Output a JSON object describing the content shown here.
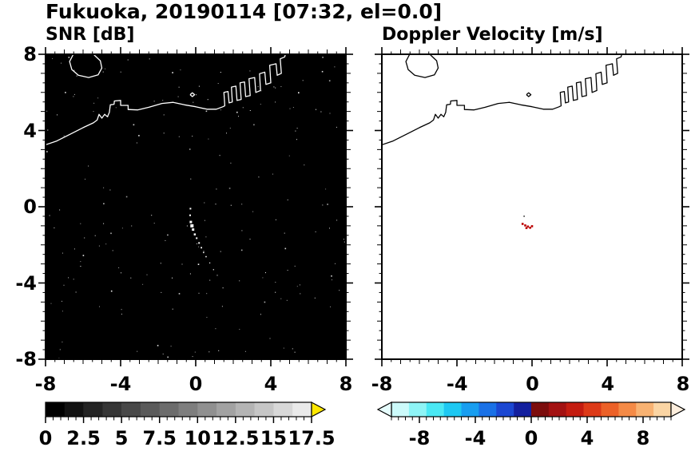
{
  "title": "Fukuoka, 20190114 [07:32, el=0.0]",
  "panels": {
    "snr": {
      "title": "SNR [dB]"
    },
    "vel": {
      "title": "Doppler Velocity [m/s]"
    }
  },
  "axes": {
    "x_tick_labels": [
      "-8",
      "-4",
      "0",
      "4",
      "8"
    ],
    "y_tick_labels": [
      "8",
      "4",
      "0",
      "-4",
      "-8"
    ]
  },
  "colorbars": {
    "snr": {
      "tick_labels": [
        "0",
        "2.5",
        "5",
        "7.5",
        "10",
        "12.5",
        "15",
        "17.5"
      ],
      "tick_values": [
        0,
        2.5,
        5,
        7.5,
        10,
        12.5,
        15,
        17.5
      ],
      "range": [
        0,
        17.5
      ],
      "segment_colors": [
        "#000000",
        "#121212",
        "#242424",
        "#363636",
        "#484848",
        "#5a5a5a",
        "#6c6c6c",
        "#7e7e7e",
        "#909090",
        "#a2a2a2",
        "#b4b4b4",
        "#c6c6c6",
        "#d8d8d8",
        "#eaeaea"
      ],
      "over_arrow_color": "#ffe800"
    },
    "vel": {
      "tick_labels": [
        "-8",
        "-4",
        "0",
        "4",
        "8"
      ],
      "tick_values": [
        -8,
        -4,
        0,
        4,
        8
      ],
      "range": [
        -10,
        10
      ],
      "segment_colors": [
        "#ccfafa",
        "#8ef4f6",
        "#4ae8f4",
        "#1ec8f2",
        "#189ef0",
        "#1a71e6",
        "#1b47d2",
        "#131f9e",
        "#7c0d0d",
        "#a31111",
        "#c41c10",
        "#dd3a18",
        "#ec6128",
        "#f48a46",
        "#f8b272",
        "#fbd5a4"
      ],
      "under_arrow_color": "#e6fdfd",
      "over_arrow_color": "#fdeedd"
    }
  },
  "chart_data": {
    "type": "heatmap",
    "suptitle": "Fukuoka, 20190114 [07:32, el=0.0]",
    "axes": {
      "xlim": [
        -8,
        8
      ],
      "ylim": [
        -8,
        8
      ],
      "xticks": [
        -8,
        -4,
        0,
        4,
        8
      ],
      "yticks": [
        -8,
        -4,
        0,
        4,
        8
      ]
    },
    "panels": [
      {
        "title": "SNR [dB]",
        "background": "#000000",
        "coast_color": "#ffffff",
        "colorbar": {
          "range": [
            0,
            17.5
          ],
          "ticks": [
            0,
            2.5,
            5,
            7.5,
            10,
            12.5,
            15,
            17.5
          ],
          "colormap": "grayscale black to white",
          "over_range_arrow": "yellow"
        },
        "texture": "sparse faint noise speckle over black field",
        "echo_color": "#ffffff",
        "echo_streak": [
          [
            -0.28,
            -0.1,
            2.0
          ],
          [
            -0.3,
            -0.45,
            2.0
          ],
          [
            -0.26,
            -0.8,
            3.0
          ],
          [
            -0.2,
            -1.0,
            4.0
          ],
          [
            -0.14,
            -1.2,
            3.0
          ],
          [
            -0.05,
            -1.45,
            2.5
          ],
          [
            0.05,
            -1.65,
            2.0
          ],
          [
            0.18,
            -1.9,
            2.0
          ],
          [
            0.3,
            -2.15,
            1.8
          ],
          [
            0.42,
            -2.4,
            1.5
          ],
          [
            0.55,
            -2.62,
            1.5
          ],
          [
            0.75,
            -2.95,
            1.2
          ],
          [
            0.95,
            -3.3,
            1.2
          ],
          [
            1.15,
            -3.6,
            1.0
          ]
        ]
      },
      {
        "title": "Doppler Velocity [m/s]",
        "background": "#ffffff",
        "coast_color": "#000000",
        "colorbar": {
          "range": [
            -10,
            10
          ],
          "ticks": [
            -8,
            -4,
            0,
            4,
            8
          ],
          "colormap": "pale cyan to navy (negative), dark red to pale orange (positive)",
          "out_of_range_arrows": "both ends"
        },
        "echo_color": "#bb0000",
        "echo_cells": [
          [
            -0.5,
            -0.9
          ],
          [
            -0.36,
            -0.98
          ],
          [
            -0.22,
            -1.04
          ],
          [
            -0.1,
            -1.1
          ],
          [
            0.0,
            -1.02
          ],
          [
            -0.3,
            -1.12
          ]
        ],
        "dark_points": [
          [
            -0.42,
            -0.5
          ]
        ]
      }
    ],
    "coastline_paths": [
      {
        "name": "mainland-with-harbor",
        "points": [
          [
            -8.0,
            3.25
          ],
          [
            -7.4,
            3.45
          ],
          [
            -6.7,
            3.8
          ],
          [
            -6.0,
            4.15
          ],
          [
            -5.45,
            4.4
          ],
          [
            -5.25,
            4.55
          ],
          [
            -5.15,
            4.85
          ],
          [
            -5.0,
            4.65
          ],
          [
            -4.85,
            4.85
          ],
          [
            -4.7,
            4.72
          ],
          [
            -4.6,
            4.95
          ],
          [
            -4.55,
            5.35
          ],
          [
            -4.35,
            5.38
          ],
          [
            -4.33,
            5.55
          ],
          [
            -4.0,
            5.58
          ],
          [
            -4.0,
            5.32
          ],
          [
            -3.6,
            5.32
          ],
          [
            -3.6,
            5.1
          ],
          [
            -3.1,
            5.08
          ],
          [
            -2.5,
            5.22
          ],
          [
            -1.8,
            5.42
          ],
          [
            -1.2,
            5.48
          ],
          [
            -0.6,
            5.35
          ],
          [
            0.0,
            5.25
          ],
          [
            0.6,
            5.12
          ],
          [
            1.1,
            5.12
          ],
          [
            1.45,
            5.25
          ],
          [
            1.55,
            5.3
          ],
          [
            1.5,
            6.0
          ],
          [
            1.72,
            6.05
          ],
          [
            1.78,
            5.45
          ],
          [
            1.95,
            5.5
          ],
          [
            1.9,
            6.28
          ],
          [
            2.14,
            6.33
          ],
          [
            2.2,
            5.58
          ],
          [
            2.42,
            5.63
          ],
          [
            2.36,
            6.5
          ],
          [
            2.6,
            6.55
          ],
          [
            2.66,
            5.78
          ],
          [
            2.9,
            5.83
          ],
          [
            2.84,
            6.72
          ],
          [
            3.14,
            6.78
          ],
          [
            3.2,
            6.0
          ],
          [
            3.45,
            6.1
          ],
          [
            3.4,
            6.98
          ],
          [
            3.68,
            7.06
          ],
          [
            3.74,
            6.42
          ],
          [
            4.0,
            6.5
          ],
          [
            3.94,
            7.42
          ],
          [
            4.28,
            7.5
          ],
          [
            4.34,
            6.9
          ],
          [
            4.56,
            7.0
          ],
          [
            4.5,
            7.76
          ],
          [
            4.74,
            7.86
          ],
          [
            4.78,
            8.0
          ]
        ]
      },
      {
        "name": "island",
        "points": [
          [
            -6.52,
            8.0
          ],
          [
            -6.72,
            7.62
          ],
          [
            -6.6,
            7.2
          ],
          [
            -6.25,
            6.9
          ],
          [
            -5.7,
            6.78
          ],
          [
            -5.2,
            6.92
          ],
          [
            -5.0,
            7.28
          ],
          [
            -5.08,
            7.66
          ],
          [
            -5.34,
            7.9
          ],
          [
            -5.44,
            8.0
          ]
        ]
      },
      {
        "name": "islet",
        "points": [
          [
            -0.3,
            5.88
          ],
          [
            -0.18,
            5.98
          ],
          [
            -0.06,
            5.88
          ],
          [
            -0.18,
            5.78
          ],
          [
            -0.3,
            5.88
          ]
        ]
      }
    ]
  }
}
